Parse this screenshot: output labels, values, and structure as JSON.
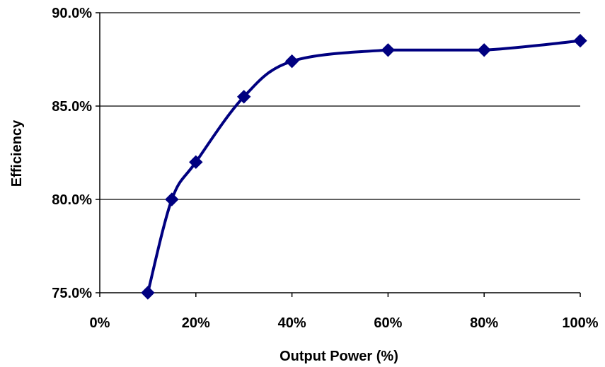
{
  "chart_data": {
    "type": "line",
    "title": "",
    "xlabel": "Output Power (%)",
    "ylabel": "Efficiency",
    "xlim": [
      0,
      100
    ],
    "ylim": [
      75,
      90
    ],
    "x_ticks": [
      0,
      20,
      40,
      60,
      80,
      100
    ],
    "x_tick_labels": [
      "0%",
      "20%",
      "40%",
      "60%",
      "80%",
      "100%"
    ],
    "y_ticks": [
      75,
      80,
      85,
      90
    ],
    "y_tick_labels": [
      "75.0%",
      "80.0%",
      "85.0%",
      "90.0%"
    ],
    "grid": "horizontal",
    "legend": "none",
    "series": [
      {
        "marker": "diamond",
        "color": "#000080",
        "points": [
          {
            "x": 10,
            "y": 75.0
          },
          {
            "x": 15,
            "y": 80.0
          },
          {
            "x": 20,
            "y": 82.0
          },
          {
            "x": 30,
            "y": 85.5
          },
          {
            "x": 40,
            "y": 87.4
          },
          {
            "x": 60,
            "y": 88.0
          },
          {
            "x": 80,
            "y": 88.0
          },
          {
            "x": 100,
            "y": 88.5
          }
        ]
      }
    ]
  }
}
